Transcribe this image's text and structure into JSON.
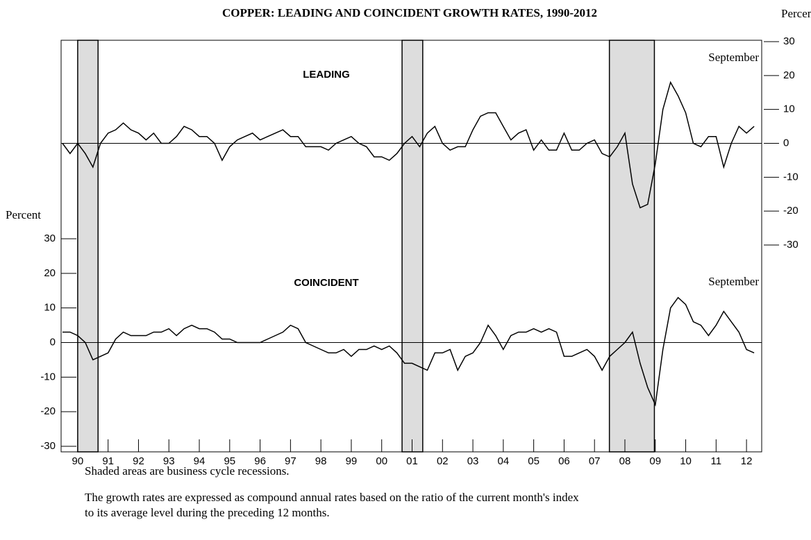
{
  "chart_data": {
    "type": "line",
    "title": "COPPER:  LEADING AND COINCIDENT GROWTH RATES, 1990-2012",
    "y2_label": "Percent",
    "y_label": "Percent",
    "annotations": [
      "September",
      "September"
    ],
    "notes": [
      "Shaded areas are business cycle recessions.",
      "The growth rates are expressed as compound annual rates based on the ratio of the current month's index",
      "to its average level during the preceding 12 months."
    ],
    "xlim": [
      1990,
      2013
    ],
    "xticks": [
      {
        "value": 1990.5,
        "label": "90"
      },
      {
        "value": 1991.5,
        "label": "91"
      },
      {
        "value": 1992.5,
        "label": "92"
      },
      {
        "value": 1993.5,
        "label": "93"
      },
      {
        "value": 1994.5,
        "label": "94"
      },
      {
        "value": 1995.5,
        "label": "95"
      },
      {
        "value": 1996.5,
        "label": "96"
      },
      {
        "value": 1997.5,
        "label": "97"
      },
      {
        "value": 1998.5,
        "label": "98"
      },
      {
        "value": 1999.5,
        "label": "99"
      },
      {
        "value": 2000.5,
        "label": "00"
      },
      {
        "value": 2001.5,
        "label": "01"
      },
      {
        "value": 2002.5,
        "label": "02"
      },
      {
        "value": 2003.5,
        "label": "03"
      },
      {
        "value": 2004.5,
        "label": "04"
      },
      {
        "value": 2005.5,
        "label": "05"
      },
      {
        "value": 2006.5,
        "label": "06"
      },
      {
        "value": 2007.5,
        "label": "07"
      },
      {
        "value": 2008.5,
        "label": "08"
      },
      {
        "value": 2009.5,
        "label": "09"
      },
      {
        "value": 2010.5,
        "label": "10"
      },
      {
        "value": 2011.5,
        "label": "11"
      },
      {
        "value": 2012.5,
        "label": "12"
      }
    ],
    "ylim": [
      -30,
      30
    ],
    "yticks": [
      -30,
      -20,
      -10,
      0,
      10,
      20,
      30
    ],
    "y2lim": [
      -30,
      30
    ],
    "y2ticks": [
      -30,
      -20,
      -10,
      0,
      10,
      20,
      30
    ],
    "zero_line": true,
    "recession_color": "#dddddd",
    "recessions": [
      [
        1990.5,
        1991.17
      ],
      [
        2001.17,
        2001.85
      ],
      [
        2007.99,
        2009.47
      ]
    ],
    "x": [
      1990,
      1990.25,
      1990.5,
      1990.75,
      1991,
      1991.25,
      1991.5,
      1991.75,
      1992,
      1992.25,
      1992.5,
      1992.75,
      1993,
      1993.25,
      1993.5,
      1993.75,
      1994,
      1994.25,
      1994.5,
      1994.75,
      1995,
      1995.25,
      1995.5,
      1995.75,
      1996,
      1996.25,
      1996.5,
      1996.75,
      1997,
      1997.25,
      1997.5,
      1997.75,
      1998,
      1998.25,
      1998.5,
      1998.75,
      1999,
      1999.25,
      1999.5,
      1999.75,
      2000,
      2000.25,
      2000.5,
      2000.75,
      2001,
      2001.25,
      2001.5,
      2001.75,
      2002,
      2002.25,
      2002.5,
      2002.75,
      2003,
      2003.25,
      2003.5,
      2003.75,
      2004,
      2004.25,
      2004.5,
      2004.75,
      2005,
      2005.25,
      2005.5,
      2005.75,
      2006,
      2006.25,
      2006.5,
      2006.75,
      2007,
      2007.25,
      2007.5,
      2007.75,
      2008,
      2008.25,
      2008.5,
      2008.75,
      2009,
      2009.25,
      2009.5,
      2009.75,
      2010,
      2010.25,
      2010.5,
      2010.75,
      2011,
      2011.25,
      2011.5,
      2011.75,
      2012,
      2012.25,
      2012.5,
      2012.75
    ],
    "series": [
      {
        "name": "LEADING",
        "axis": "y2",
        "color": "#000000",
        "values": [
          0,
          -3,
          0,
          -3,
          -7,
          0,
          3,
          4,
          6,
          4,
          3,
          1,
          3,
          0,
          0,
          2,
          5,
          4,
          2,
          2,
          0,
          -5,
          -1,
          1,
          2,
          3,
          1,
          2,
          3,
          4,
          2,
          2,
          -1,
          -1,
          -1,
          -2,
          0,
          1,
          2,
          0,
          -1,
          -4,
          -4,
          -5,
          -3,
          0,
          2,
          -1,
          3,
          5,
          0,
          -2,
          -1,
          -1,
          4,
          8,
          9,
          9,
          5,
          1,
          3,
          4,
          -2,
          1,
          -2,
          -2,
          3,
          -2,
          -2,
          0,
          1,
          -3,
          -4,
          -1,
          3,
          -12,
          -19,
          -18,
          -6,
          10,
          18,
          14,
          9,
          0,
          -1,
          2,
          2,
          -7,
          0,
          5,
          3,
          5
        ]
      },
      {
        "name": "COINCIDENT",
        "axis": "y",
        "color": "#000000",
        "values": [
          3,
          3,
          2,
          0,
          -5,
          -4,
          -3,
          1,
          3,
          2,
          2,
          2,
          3,
          3,
          4,
          2,
          4,
          5,
          4,
          4,
          3,
          1,
          1,
          0,
          0,
          0,
          0,
          1,
          2,
          3,
          5,
          4,
          0,
          -1,
          -2,
          -3,
          -3,
          -2,
          -4,
          -2,
          -2,
          -1,
          -2,
          -1,
          -3,
          -6,
          -6,
          -7,
          -8,
          -3,
          -3,
          -2,
          -8,
          -4,
          -3,
          0,
          5,
          2,
          -2,
          2,
          3,
          3,
          4,
          3,
          4,
          3,
          -4,
          -4,
          -3,
          -2,
          -4,
          -8,
          -4,
          -2,
          0,
          3,
          -6,
          -13,
          -18,
          -2,
          10,
          13,
          11,
          6,
          5,
          2,
          5,
          9,
          6,
          3,
          -2,
          -3
        ]
      }
    ]
  }
}
